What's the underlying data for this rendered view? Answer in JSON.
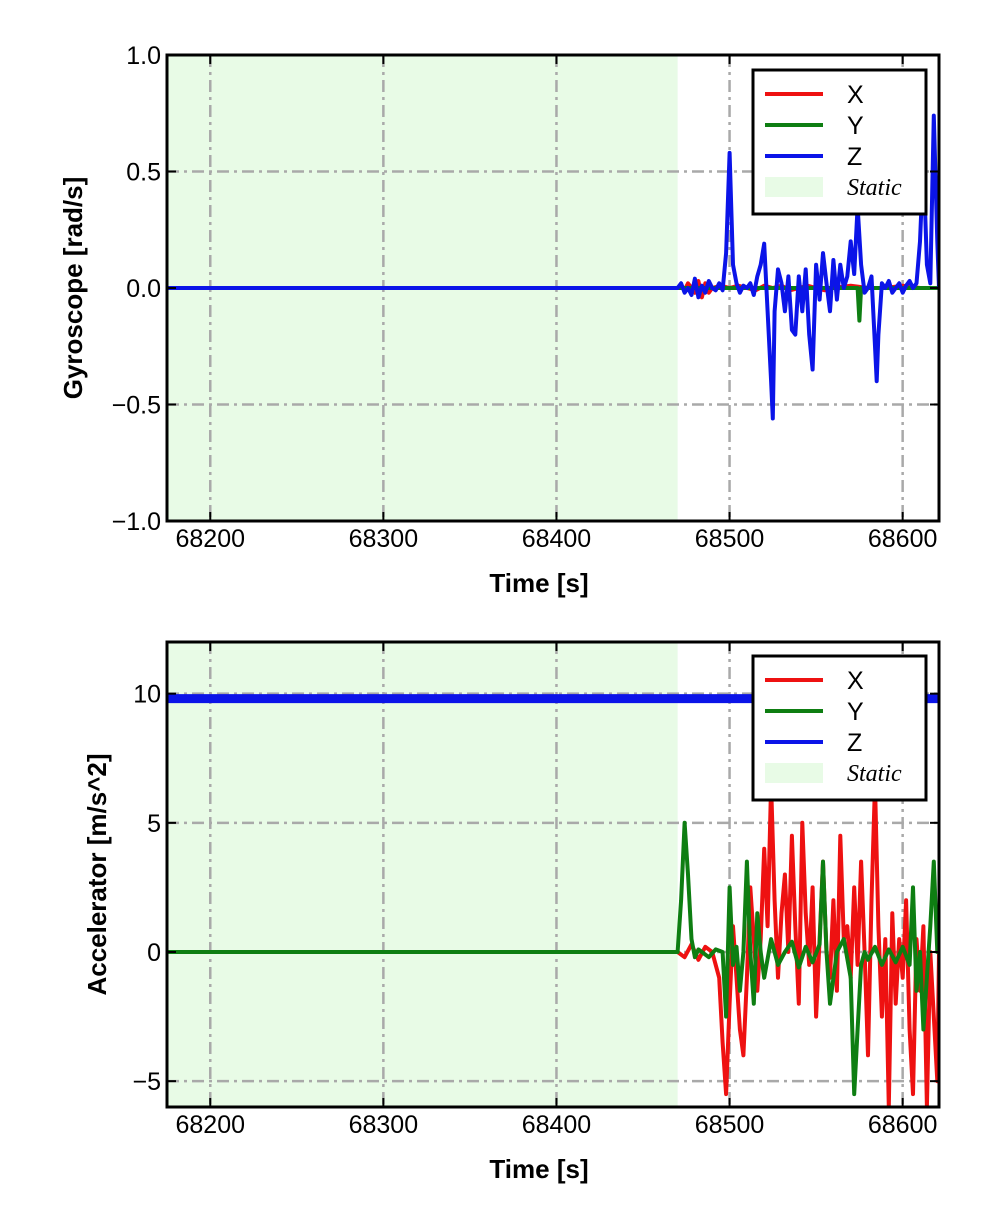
{
  "chart_data": [
    {
      "type": "line",
      "ylabel": "Gyroscope [rad/s]",
      "xlabel": "Time [s]",
      "xlim": [
        68175,
        68621
      ],
      "ylim": [
        -1.0,
        1.0
      ],
      "xticks": [
        68200,
        68300,
        68400,
        68500,
        68600
      ],
      "xtick_labels": [
        "68200",
        "68300",
        "68400",
        "68500",
        "68600"
      ],
      "yticks": [
        -1.0,
        -0.5,
        0.0,
        0.5,
        1.0
      ],
      "ytick_labels": [
        "−1.0",
        "−0.5",
        "0.0",
        "0.5",
        "1.0"
      ],
      "grid": true,
      "legend_position": "top-right",
      "static_region": {
        "label": "Static",
        "x": [
          68175,
          68470
        ],
        "color": "#e8fbe6"
      },
      "series": [
        {
          "name": "X",
          "color": "#ee1111",
          "x": [
            68175,
            68470,
            68472,
            68474,
            68476,
            68478,
            68480,
            68482,
            68484,
            68486,
            68488,
            68490,
            68495,
            68500,
            68505,
            68510,
            68515,
            68520,
            68525,
            68530,
            68535,
            68540,
            68545,
            68550,
            68555,
            68560,
            68570,
            68580,
            68590,
            68600,
            68610,
            68621
          ],
          "y": [
            0.0,
            0.0,
            0.01,
            -0.01,
            0.02,
            0.0,
            -0.02,
            0.03,
            -0.04,
            0.02,
            -0.02,
            0.0,
            0.01,
            0.0,
            0.01,
            0.0,
            -0.01,
            0.01,
            0.0,
            0.01,
            -0.01,
            0.0,
            0.01,
            0.0,
            -0.01,
            0.0,
            0.01,
            0.0,
            0.0,
            0.01,
            0.0,
            0.0
          ]
        },
        {
          "name": "Y",
          "color": "#0e7e12",
          "x": [
            68175,
            68470,
            68480,
            68490,
            68500,
            68510,
            68520,
            68530,
            68540,
            68550,
            68560,
            68570,
            68574,
            68575,
            68576,
            68580,
            68590,
            68600,
            68610,
            68621
          ],
          "y": [
            0.0,
            0.0,
            0.0,
            0.0,
            0.0,
            0.0,
            0.0,
            0.0,
            0.0,
            0.0,
            0.0,
            0.0,
            0.0,
            -0.14,
            0.0,
            0.0,
            0.0,
            0.0,
            0.0,
            0.0
          ]
        },
        {
          "name": "Z",
          "color": "#0b14e8",
          "x": [
            68175,
            68470,
            68472,
            68474,
            68476,
            68478,
            68480,
            68482,
            68484,
            68486,
            68488,
            68490,
            68492,
            68494,
            68496,
            68498,
            68500,
            68502,
            68504,
            68506,
            68508,
            68510,
            68512,
            68514,
            68516,
            68518,
            68520,
            68522,
            68524,
            68525,
            68526,
            68528,
            68530,
            68532,
            68534,
            68536,
            68538,
            68540,
            68542,
            68544,
            68546,
            68548,
            68550,
            68552,
            68554,
            68556,
            68558,
            68560,
            68562,
            68564,
            68566,
            68568,
            68570,
            68572,
            68574,
            68576,
            68578,
            68580,
            68582,
            68584,
            68585,
            68586,
            68588,
            68590,
            68592,
            68594,
            68596,
            68598,
            68600,
            68602,
            68604,
            68606,
            68608,
            68610,
            68612,
            68614,
            68616,
            68618,
            68620,
            68621
          ],
          "y": [
            0.0,
            0.0,
            0.02,
            -0.02,
            0.0,
            -0.03,
            0.04,
            -0.04,
            0.01,
            -0.02,
            0.03,
            0.0,
            -0.01,
            0.02,
            -0.01,
            0.15,
            0.58,
            0.1,
            0.02,
            -0.02,
            0.01,
            0.0,
            0.02,
            -0.03,
            0.05,
            0.1,
            0.19,
            -0.1,
            -0.4,
            -0.56,
            -0.1,
            0.08,
            0.02,
            -0.1,
            0.05,
            -0.18,
            -0.2,
            0.05,
            -0.1,
            0.08,
            -0.2,
            -0.35,
            0.1,
            -0.05,
            0.15,
            0.02,
            -0.1,
            0.12,
            -0.05,
            0.1,
            0.0,
            0.05,
            0.2,
            0.06,
            0.35,
            0.1,
            -0.02,
            0.0,
            0.05,
            -0.25,
            -0.4,
            -0.2,
            0.02,
            0.0,
            0.03,
            -0.02,
            0.0,
            0.02,
            -0.02,
            0.01,
            0.03,
            0.0,
            0.02,
            0.2,
            0.55,
            0.1,
            0.02,
            0.74,
            0.2,
            0.0
          ]
        }
      ]
    },
    {
      "type": "line",
      "ylabel": "Accelerator [m/s^2]",
      "xlabel": "Time [s]",
      "xlim": [
        68175,
        68621
      ],
      "ylim": [
        -6.0,
        12.0
      ],
      "xticks": [
        68200,
        68300,
        68400,
        68500,
        68600
      ],
      "xtick_labels": [
        "68200",
        "68300",
        "68400",
        "68500",
        "68600"
      ],
      "yticks": [
        -5,
        0,
        5,
        10
      ],
      "ytick_labels": [
        "−5",
        "0",
        "5",
        "10"
      ],
      "grid": true,
      "legend_position": "top-right",
      "static_region": {
        "label": "Static",
        "x": [
          68175,
          68470
        ],
        "color": "#e8fbe6"
      },
      "series": [
        {
          "name": "X",
          "color": "#ee1111",
          "x": [
            68175,
            68470,
            68474,
            68478,
            68482,
            68486,
            68490,
            68494,
            68496,
            68498,
            68500,
            68502,
            68504,
            68506,
            68508,
            68510,
            68512,
            68514,
            68516,
            68518,
            68520,
            68522,
            68524,
            68526,
            68528,
            68530,
            68532,
            68534,
            68536,
            68538,
            68540,
            68542,
            68544,
            68546,
            68548,
            68550,
            68552,
            68554,
            68556,
            68558,
            68560,
            68562,
            68564,
            68566,
            68568,
            68570,
            68572,
            68574,
            68576,
            68578,
            68580,
            68582,
            68584,
            68586,
            68588,
            68590,
            68592,
            68594,
            68596,
            68598,
            68600,
            68602,
            68604,
            68606,
            68608,
            68610,
            68612,
            68614,
            68616,
            68618,
            68620,
            68621
          ],
          "y": [
            0.0,
            0.0,
            -0.2,
            0.3,
            -0.3,
            0.2,
            0.0,
            -1.0,
            -3.5,
            -5.5,
            -2.0,
            1.0,
            -1.0,
            -3.0,
            -4.0,
            -1.0,
            2.5,
            0.5,
            -1.5,
            0.5,
            4.0,
            1.0,
            6.5,
            2.0,
            -1.0,
            1.5,
            3.0,
            0.0,
            4.5,
            1.0,
            -2.0,
            5.0,
            1.5,
            -0.5,
            2.5,
            -2.5,
            0.5,
            3.5,
            0.0,
            -1.0,
            2.0,
            -1.5,
            4.5,
            0.5,
            1.0,
            -1.0,
            2.5,
            -0.5,
            3.5,
            0.0,
            -4.0,
            2.0,
            6.5,
            1.0,
            -2.5,
            0.5,
            -6.0,
            1.5,
            -2.0,
            0.5,
            -1.0,
            2.0,
            -3.0,
            -5.5,
            0.5,
            -1.5,
            1.0,
            -6.0,
            0.0,
            -2.5,
            -5.0,
            0.0
          ]
        },
        {
          "name": "Y",
          "color": "#0e7e12",
          "x": [
            68175,
            68470,
            68472,
            68474,
            68476,
            68478,
            68480,
            68482,
            68484,
            68488,
            68492,
            68496,
            68498,
            68500,
            68502,
            68504,
            68506,
            68508,
            68510,
            68512,
            68514,
            68516,
            68518,
            68520,
            68524,
            68528,
            68532,
            68536,
            68540,
            68544,
            68548,
            68552,
            68554,
            68556,
            68558,
            68562,
            68566,
            68570,
            68572,
            68574,
            68576,
            68578,
            68580,
            68584,
            68588,
            68592,
            68596,
            68600,
            68604,
            68606,
            68608,
            68610,
            68612,
            68616,
            68618,
            68620,
            68621
          ],
          "y": [
            0.0,
            0.0,
            2.0,
            5.0,
            3.0,
            0.5,
            -0.2,
            0.1,
            0.0,
            -0.2,
            0.1,
            0.0,
            -2.5,
            2.5,
            -0.5,
            0.2,
            -1.5,
            0.0,
            3.5,
            0.0,
            -2.0,
            1.5,
            0.0,
            -1.0,
            0.5,
            -0.5,
            0.0,
            0.4,
            -0.6,
            0.2,
            -0.4,
            0.3,
            3.5,
            0.0,
            -2.0,
            0.0,
            0.5,
            -1.0,
            -5.5,
            -3.0,
            -0.5,
            0.0,
            -0.3,
            0.2,
            -0.5,
            0.1,
            -0.4,
            0.2,
            -0.5,
            2.5,
            -1.5,
            0.0,
            -3.0,
            1.0,
            3.5,
            0.0,
            0.0
          ]
        },
        {
          "name": "Z",
          "color": "#0b14e8",
          "x": [
            68175,
            68621
          ],
          "y": [
            9.81,
            9.81
          ]
        }
      ]
    }
  ]
}
